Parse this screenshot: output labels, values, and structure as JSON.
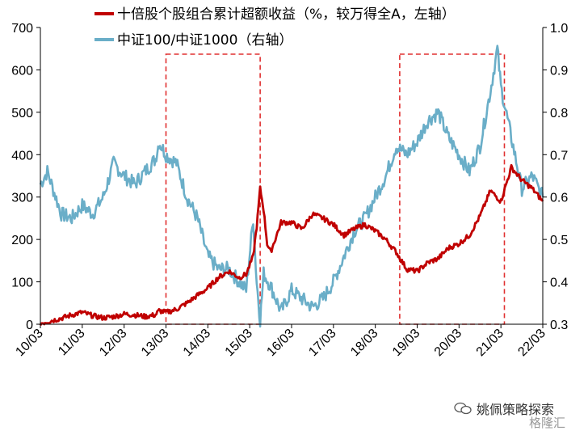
{
  "chart_data": {
    "type": "line",
    "legend": [
      "十倍股个股组合累计超额收益（%，较万得全A，左轴）",
      "中证100/中证1000（右轴）"
    ],
    "colors": {
      "excess": "#c00000",
      "ratio": "#6aaec8",
      "box": "#e03030"
    },
    "x_ticks": [
      "10/03",
      "11/03",
      "12/03",
      "13/03",
      "14/03",
      "15/03",
      "16/03",
      "17/03",
      "18/03",
      "19/03",
      "20/03",
      "21/03",
      "22/03"
    ],
    "xlim": [
      "2010-03",
      "2022-03"
    ],
    "y_left": {
      "ticks": [
        "0",
        "100",
        "200",
        "300",
        "400",
        "500",
        "600",
        "700"
      ],
      "lim": [
        0,
        700
      ]
    },
    "y_right": {
      "ticks": [
        "0.3",
        "0.4",
        "0.5",
        "0.6",
        "0.7",
        "0.8",
        "0.9",
        "1.0"
      ],
      "lim": [
        0.3,
        1.0
      ]
    },
    "highlight_periods": [
      [
        "2013-03",
        "2015-06"
      ],
      [
        "2018-10",
        "2021-04"
      ]
    ],
    "series": [
      {
        "name": "十倍股个股组合累计超额收益（%，较万得全A，左轴）",
        "axis": "left",
        "points": [
          [
            "2010-03",
            2
          ],
          [
            "2010-06",
            8
          ],
          [
            "2010-09",
            14
          ],
          [
            "2010-12",
            22
          ],
          [
            "2011-03",
            28
          ],
          [
            "2011-06",
            20
          ],
          [
            "2011-09",
            15
          ],
          [
            "2011-12",
            18
          ],
          [
            "2012-03",
            24
          ],
          [
            "2012-06",
            22
          ],
          [
            "2012-09",
            18
          ],
          [
            "2012-12",
            22
          ],
          [
            "2013-01",
            32
          ],
          [
            "2013-03",
            28
          ],
          [
            "2013-06",
            35
          ],
          [
            "2013-09",
            50
          ],
          [
            "2013-12",
            68
          ],
          [
            "2014-03",
            85
          ],
          [
            "2014-06",
            110
          ],
          [
            "2014-09",
            125
          ],
          [
            "2014-12",
            110
          ],
          [
            "2015-02",
            118
          ],
          [
            "2015-04",
            160
          ],
          [
            "2015-05",
            230
          ],
          [
            "2015-06",
            320
          ],
          [
            "2015-07",
            270
          ],
          [
            "2015-08",
            190
          ],
          [
            "2015-09",
            170
          ],
          [
            "2015-12",
            240
          ],
          [
            "2016-03",
            240
          ],
          [
            "2016-06",
            225
          ],
          [
            "2016-09",
            260
          ],
          [
            "2016-12",
            250
          ],
          [
            "2017-03",
            235
          ],
          [
            "2017-06",
            210
          ],
          [
            "2017-09",
            225
          ],
          [
            "2017-12",
            235
          ],
          [
            "2018-03",
            220
          ],
          [
            "2018-06",
            200
          ],
          [
            "2018-09",
            170
          ],
          [
            "2018-12",
            130
          ],
          [
            "2019-03",
            125
          ],
          [
            "2019-06",
            145
          ],
          [
            "2019-09",
            155
          ],
          [
            "2019-12",
            180
          ],
          [
            "2020-03",
            190
          ],
          [
            "2020-06",
            210
          ],
          [
            "2020-09",
            255
          ],
          [
            "2020-12",
            315
          ],
          [
            "2021-03",
            290
          ],
          [
            "2021-06",
            370
          ],
          [
            "2021-09",
            340
          ],
          [
            "2021-12",
            320
          ],
          [
            "2022-03",
            290
          ]
        ]
      },
      {
        "name": "中证100/中证1000（右轴）",
        "axis": "right",
        "points": [
          [
            "2010-03",
            0.63
          ],
          [
            "2010-05",
            0.66
          ],
          [
            "2010-07",
            0.61
          ],
          [
            "2010-09",
            0.56
          ],
          [
            "2010-12",
            0.55
          ],
          [
            "2011-03",
            0.58
          ],
          [
            "2011-06",
            0.56
          ],
          [
            "2011-09",
            0.6
          ],
          [
            "2011-12",
            0.68
          ],
          [
            "2012-03",
            0.65
          ],
          [
            "2012-06",
            0.63
          ],
          [
            "2012-09",
            0.66
          ],
          [
            "2012-12",
            0.69
          ],
          [
            "2013-01",
            0.73
          ],
          [
            "2013-03",
            0.7
          ],
          [
            "2013-06",
            0.68
          ],
          [
            "2013-09",
            0.6
          ],
          [
            "2013-12",
            0.55
          ],
          [
            "2014-03",
            0.46
          ],
          [
            "2014-06",
            0.43
          ],
          [
            "2014-09",
            0.43
          ],
          [
            "2014-12",
            0.4
          ],
          [
            "2015-02",
            0.38
          ],
          [
            "2015-04",
            0.55
          ],
          [
            "2015-05",
            0.4
          ],
          [
            "2015-06",
            0.31
          ],
          [
            "2015-07",
            0.42
          ],
          [
            "2015-09",
            0.39
          ],
          [
            "2015-12",
            0.33
          ],
          [
            "2016-03",
            0.38
          ],
          [
            "2016-06",
            0.36
          ],
          [
            "2016-09",
            0.34
          ],
          [
            "2016-12",
            0.36
          ],
          [
            "2017-03",
            0.4
          ],
          [
            "2017-06",
            0.46
          ],
          [
            "2017-09",
            0.52
          ],
          [
            "2017-12",
            0.55
          ],
          [
            "2018-03",
            0.6
          ],
          [
            "2018-06",
            0.65
          ],
          [
            "2018-09",
            0.72
          ],
          [
            "2018-12",
            0.7
          ],
          [
            "2019-03",
            0.73
          ],
          [
            "2019-06",
            0.78
          ],
          [
            "2019-09",
            0.8
          ],
          [
            "2019-12",
            0.74
          ],
          [
            "2020-03",
            0.7
          ],
          [
            "2020-06",
            0.66
          ],
          [
            "2020-09",
            0.72
          ],
          [
            "2020-12",
            0.85
          ],
          [
            "2021-02",
            0.95
          ],
          [
            "2021-03",
            0.86
          ],
          [
            "2021-06",
            0.74
          ],
          [
            "2021-09",
            0.62
          ],
          [
            "2021-12",
            0.65
          ],
          [
            "2022-03",
            0.6
          ]
        ]
      }
    ]
  },
  "watermark": {
    "text": "姚佩策略探索",
    "icon": "wechat-icon"
  },
  "watermark2": {
    "text": "格隆汇"
  }
}
